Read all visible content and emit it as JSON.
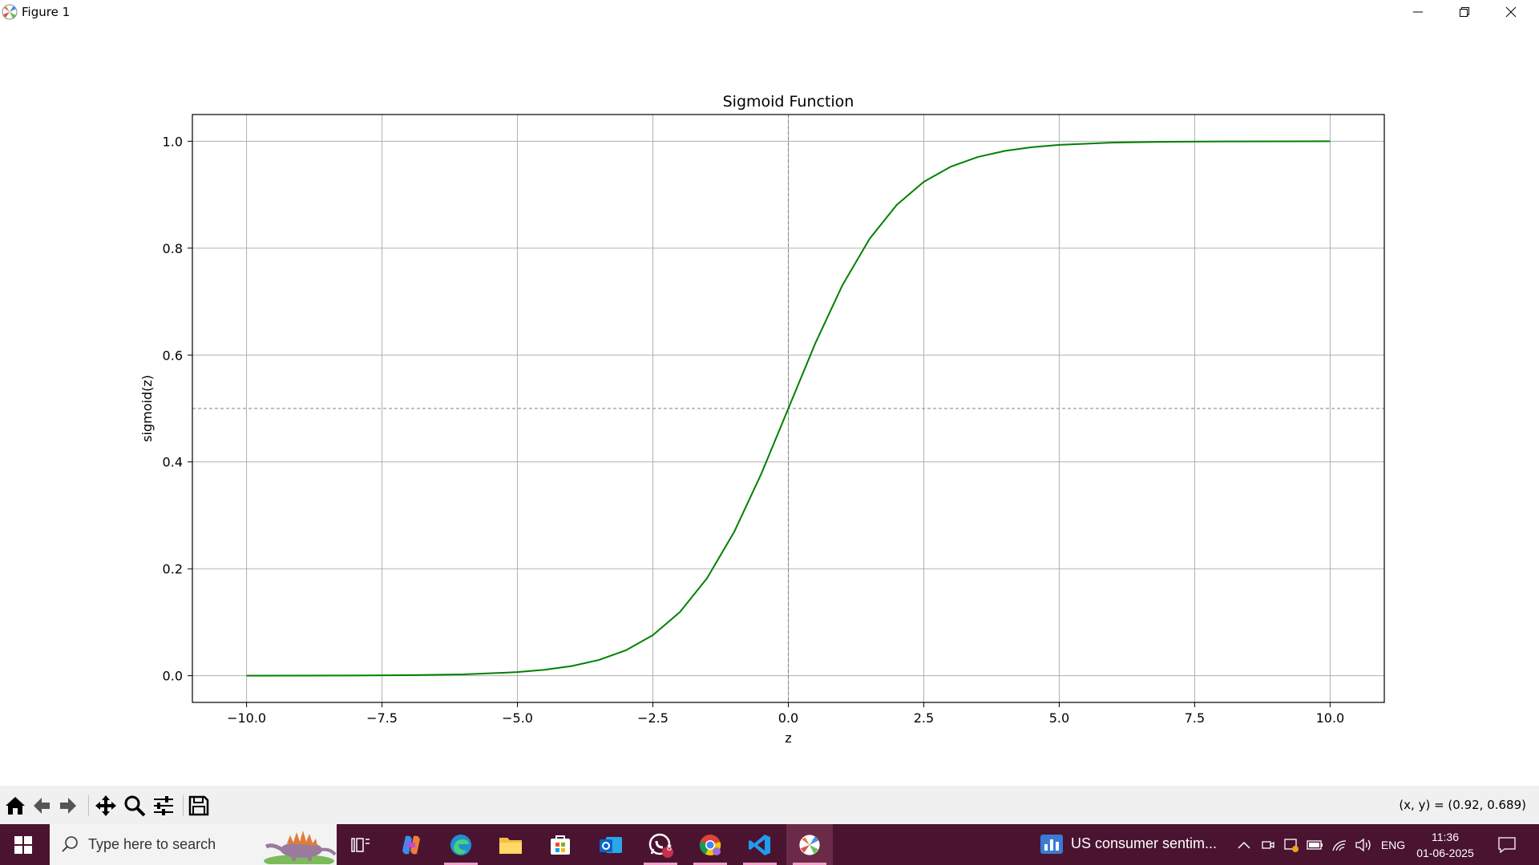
{
  "window": {
    "title": "Figure 1"
  },
  "chart_data": {
    "type": "line",
    "title": "Sigmoid Function",
    "xlabel": "z",
    "ylabel": "sigmoid(z)",
    "xlim": [
      -11,
      11
    ],
    "ylim": [
      -0.05,
      1.05
    ],
    "xticks": [
      -10,
      -7.5,
      -5,
      -2.5,
      0,
      2.5,
      5,
      7.5,
      10
    ],
    "xtick_labels": [
      "−10.0",
      "−7.5",
      "−5.0",
      "−2.5",
      "0.0",
      "2.5",
      "5.0",
      "7.5",
      "10.0"
    ],
    "yticks": [
      0,
      0.2,
      0.4,
      0.6,
      0.8,
      1.0
    ],
    "ytick_labels": [
      "0.0",
      "0.2",
      "0.4",
      "0.6",
      "0.8",
      "1.0"
    ],
    "grid": true,
    "series": [
      {
        "color": "#008000",
        "x": [
          -10,
          -9,
          -8,
          -7,
          -6,
          -5,
          -4.5,
          -4,
          -3.5,
          -3,
          -2.5,
          -2,
          -1.5,
          -1,
          -0.5,
          0,
          0.5,
          1,
          1.5,
          2,
          2.5,
          3,
          3.5,
          4,
          4.5,
          5,
          6,
          7,
          8,
          9,
          10
        ],
        "y": [
          5e-05,
          0.00012,
          0.00034,
          0.00091,
          0.00247,
          0.00669,
          0.01099,
          0.01799,
          0.02931,
          0.04743,
          0.07586,
          0.1192,
          0.18243,
          0.26894,
          0.37754,
          0.5,
          0.62246,
          0.73106,
          0.81757,
          0.8808,
          0.92414,
          0.95257,
          0.97069,
          0.98201,
          0.98901,
          0.99331,
          0.99753,
          0.99909,
          0.99966,
          0.99988,
          0.99995
        ]
      }
    ],
    "reference_lines": [
      {
        "orientation": "horizontal",
        "value": 0.5,
        "style": "dashed",
        "color": "#808080"
      },
      {
        "orientation": "vertical",
        "value": 0,
        "style": "dashed",
        "color": "#808080"
      }
    ]
  },
  "toolbar": {
    "buttons": [
      {
        "name": "home-icon",
        "label": "Home"
      },
      {
        "name": "back-icon",
        "label": "Back"
      },
      {
        "name": "forward-icon",
        "label": "Forward"
      },
      {
        "name": "pan-icon",
        "label": "Pan"
      },
      {
        "name": "zoom-icon",
        "label": "Zoom"
      },
      {
        "name": "configure-subplots-icon",
        "label": "Configure subplots"
      },
      {
        "name": "save-icon",
        "label": "Save"
      }
    ],
    "coords": "(x, y) = (0.92, 0.689)"
  },
  "taskbar": {
    "search_placeholder": "Type here to search",
    "apps": [
      "task-view",
      "copilot",
      "edge",
      "file-explorer",
      "microsoft-store",
      "outlook",
      "whatsapp",
      "chrome",
      "vscode",
      "matplotlib-figure"
    ],
    "whatsapp_badge": "8",
    "news": "US consumer sentim...",
    "language": "ENG",
    "time": "11:36",
    "date": "01-06-2025",
    "accent": "#4a1430"
  }
}
